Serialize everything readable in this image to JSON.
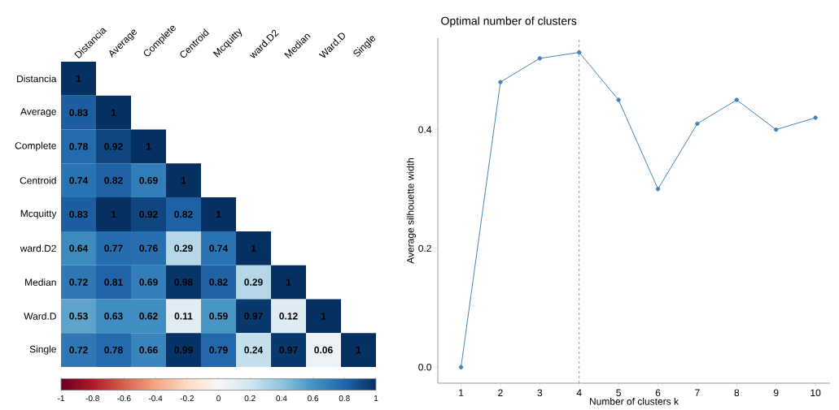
{
  "chart_data": [
    {
      "type": "heatmap",
      "categories": [
        "Distancia",
        "Average",
        "Complete",
        "Centroid",
        "Mcquitty",
        "ward.D2",
        "Median",
        "Ward.D",
        "Single"
      ],
      "y_categories": [
        "Distancia",
        "Average",
        "Complete",
        "Centroid",
        "Mcquitty",
        "ward.D2",
        "Median",
        "Ward.D",
        "Single"
      ],
      "cells": [
        [
          1,
          null,
          null,
          null,
          null,
          null,
          null,
          null,
          null
        ],
        [
          0.83,
          1,
          null,
          null,
          null,
          null,
          null,
          null,
          null
        ],
        [
          0.78,
          0.92,
          1,
          null,
          null,
          null,
          null,
          null,
          null
        ],
        [
          0.74,
          0.82,
          0.69,
          1,
          null,
          null,
          null,
          null,
          null
        ],
        [
          0.83,
          1,
          0.92,
          0.82,
          1,
          null,
          null,
          null,
          null
        ],
        [
          0.64,
          0.77,
          0.76,
          0.29,
          0.74,
          1,
          null,
          null,
          null
        ],
        [
          0.72,
          0.81,
          0.69,
          0.98,
          0.82,
          0.29,
          1,
          null,
          null
        ],
        [
          0.53,
          0.63,
          0.62,
          0.11,
          0.59,
          0.97,
          0.12,
          1,
          null
        ],
        [
          0.72,
          0.78,
          0.66,
          0.99,
          0.79,
          0.24,
          0.97,
          0.06,
          1
        ]
      ],
      "clim": [
        -1,
        1
      ],
      "cticks": [
        -1,
        -0.8,
        -0.6,
        -0.4,
        -0.2,
        0,
        0.2,
        0.4,
        0.6,
        0.8,
        1
      ],
      "data_labels": true
    },
    {
      "type": "line",
      "title": "Optimal number of clusters",
      "xlabel": "Number of clusters k",
      "ylabel": "Average silhouette width",
      "x": [
        1,
        2,
        3,
        4,
        5,
        6,
        7,
        8,
        9,
        10
      ],
      "values": [
        0,
        0.48,
        0.52,
        0.53,
        0.45,
        0.3,
        0.41,
        0.45,
        0.4,
        0.42
      ],
      "color": "#4682b4",
      "marker": "circle",
      "grid": false,
      "xlim": [
        0.41,
        10.37
      ],
      "ylim": [
        -0.027,
        0.554
      ],
      "xticks": [
        1,
        2,
        3,
        4,
        5,
        6,
        7,
        8,
        9,
        10
      ],
      "yticks": [
        {
          "value": 0,
          "label": "0.0"
        },
        {
          "value": 0.2,
          "label": "0.2"
        },
        {
          "value": 0.4,
          "label": "0.4"
        }
      ],
      "ref_lines": [
        {
          "axis": "x",
          "value": 4,
          "line_style": "dashed",
          "color": "#4682b4"
        }
      ]
    }
  ]
}
